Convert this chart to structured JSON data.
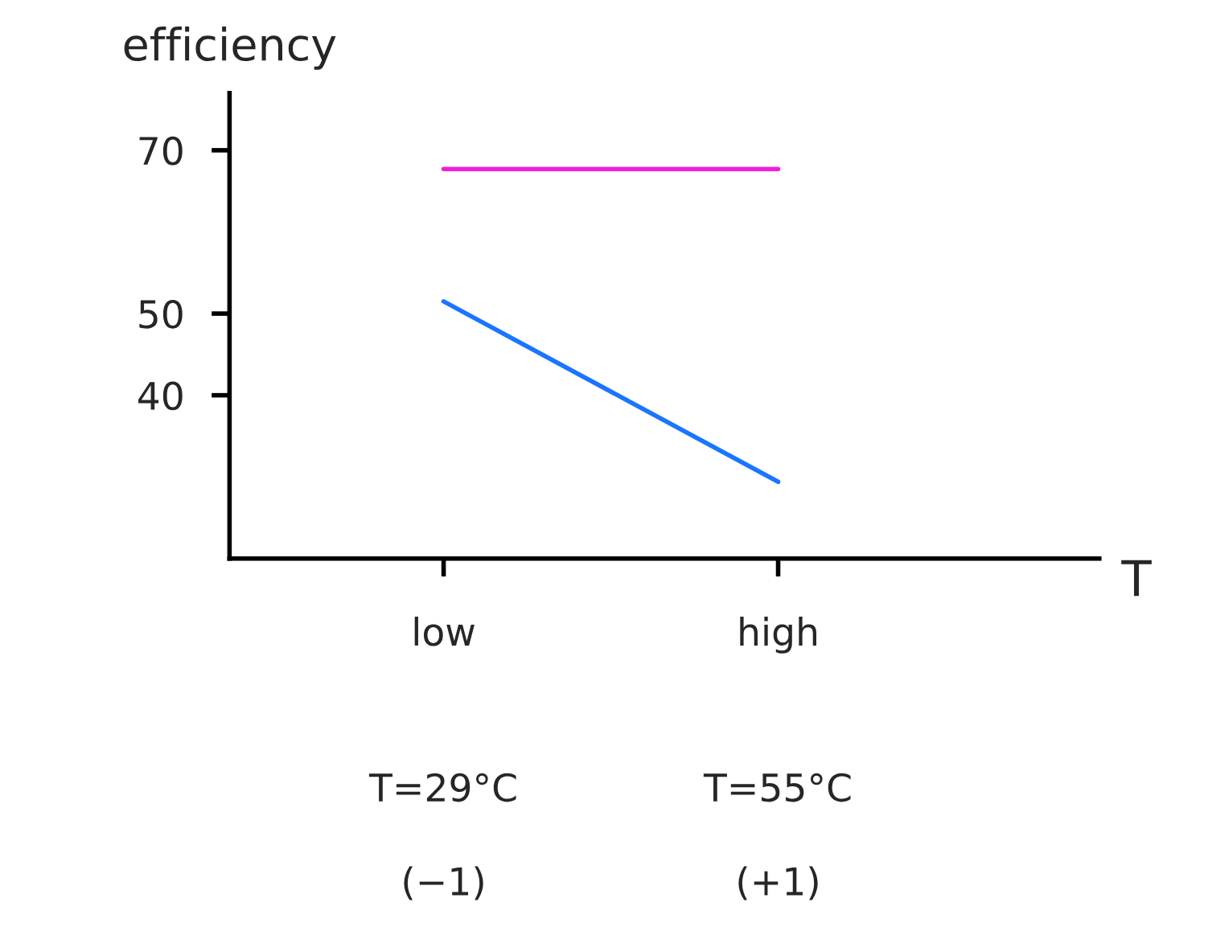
{
  "chart_data": {
    "type": "line",
    "xlabel": "T",
    "ylabel": "efficiency",
    "categories": [
      "low",
      "high"
    ],
    "annotations": [
      "T=29°C",
      "(−1)",
      "T=55°C",
      "(+1)"
    ],
    "ylim": [
      20,
      77
    ],
    "yticks": [
      40,
      50,
      70
    ],
    "series": [
      {
        "color": "#f020d8",
        "values": [
          67.7,
          67.7
        ]
      },
      {
        "color": "#1a75ff",
        "values": [
          51.5,
          29.4
        ]
      }
    ],
    "grid": false,
    "legend": false,
    "marker": "none",
    "line_style": "solid"
  }
}
